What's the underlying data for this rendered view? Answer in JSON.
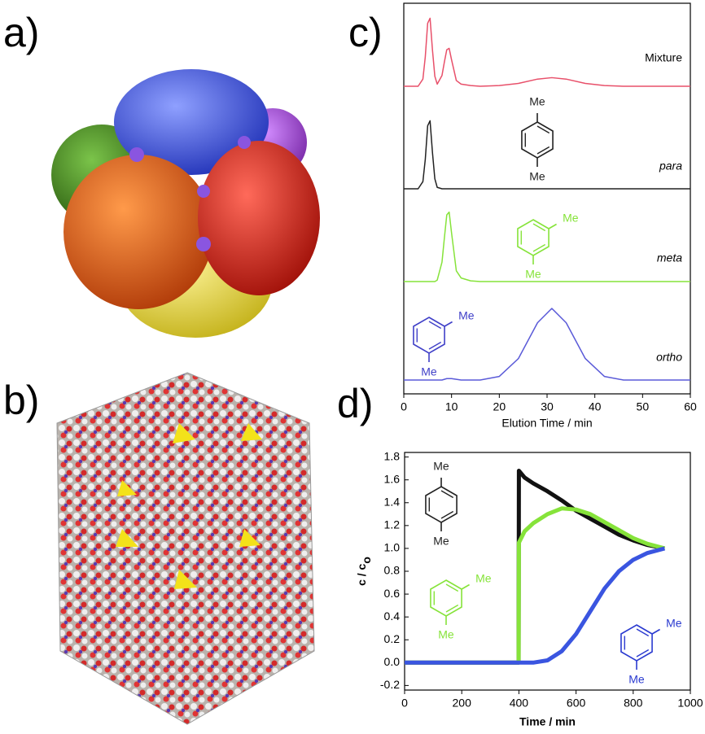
{
  "panel_labels": [
    "a)",
    "b)",
    "c)",
    "d)"
  ],
  "chart_data": [
    {
      "type": "line",
      "xlabel": "Elution Time / min",
      "xlim": [
        0,
        60
      ],
      "xticks": [
        0,
        10,
        20,
        30,
        40,
        50,
        60
      ],
      "x": [
        0,
        2,
        3,
        4,
        4.5,
        5,
        5.5,
        6,
        6.5,
        7,
        8,
        8.5,
        9,
        9.5,
        10,
        11,
        12,
        14,
        16,
        20,
        24,
        28,
        31,
        34,
        38,
        42,
        46,
        50,
        55,
        60
      ],
      "series": [
        {
          "name": "Mixture",
          "color": "#e8506a",
          "values": [
            0,
            0,
            0,
            0.1,
            0.41,
            0.88,
            0.95,
            0.51,
            0.14,
            0.03,
            0.15,
            0.34,
            0.51,
            0.53,
            0.37,
            0.08,
            0.03,
            0.01,
            0,
            0.01,
            0.04,
            0.1,
            0.12,
            0.1,
            0.04,
            0.01,
            0,
            0,
            0,
            0
          ]
        },
        {
          "name": "para",
          "color": "#222222",
          "values": [
            0,
            0,
            0,
            0.1,
            0.41,
            0.88,
            0.95,
            0.51,
            0.14,
            0.02,
            0,
            0,
            0,
            0,
            0,
            0,
            0,
            0,
            0,
            0,
            0,
            0,
            0,
            0,
            0,
            0,
            0,
            0,
            0,
            0
          ]
        },
        {
          "name": "meta",
          "color": "#86e33a",
          "values": [
            0,
            0,
            0,
            0,
            0,
            0,
            0,
            0,
            0,
            0.02,
            0.27,
            0.61,
            0.93,
            0.97,
            0.68,
            0.15,
            0.05,
            0.01,
            0,
            0,
            0,
            0,
            0,
            0,
            0,
            0,
            0,
            0,
            0,
            0
          ]
        },
        {
          "name": "ortho",
          "color": "#5a5ad8",
          "values": [
            0,
            0,
            0,
            0,
            0,
            0,
            0,
            0,
            0,
            0,
            0,
            0.01,
            0.02,
            0.02,
            0.02,
            0.01,
            0,
            0,
            0,
            0.05,
            0.3,
            0.8,
            1.0,
            0.8,
            0.3,
            0.05,
            0,
            0,
            0,
            0
          ]
        }
      ],
      "annotations": [
        "Me",
        "Me",
        "Me",
        "Me",
        "Me",
        "Me"
      ]
    },
    {
      "type": "line",
      "xlabel": "Time / min",
      "ylabel": "c / c",
      "ylabel_sub": "o",
      "xlim": [
        0,
        1000
      ],
      "xticks": [
        0,
        200,
        400,
        600,
        800,
        1000
      ],
      "ylim": [
        -0.24,
        1.84
      ],
      "yticks": [
        -0.2,
        {
          "value": 0,
          "label": "0.0"
        },
        0.2,
        0.4,
        0.6,
        0.8,
        {
          "value": 1,
          "label": "1.0"
        },
        1.2,
        1.4,
        1.6,
        1.8
      ],
      "x": [
        0,
        100,
        200,
        300,
        399,
        400,
        420,
        450,
        500,
        550,
        600,
        650,
        700,
        750,
        800,
        850,
        910
      ],
      "series": [
        {
          "color": "#111111",
          "values": [
            0,
            0,
            0,
            0,
            0,
            1.68,
            1.62,
            1.57,
            1.5,
            1.42,
            1.33,
            1.26,
            1.19,
            1.12,
            1.07,
            1.03,
            1.0
          ]
        },
        {
          "color": "#86e33a",
          "values": [
            0,
            0,
            0,
            0,
            0,
            1.05,
            1.15,
            1.22,
            1.3,
            1.35,
            1.34,
            1.3,
            1.23,
            1.16,
            1.09,
            1.04,
            1.0
          ]
        },
        {
          "color": "#3a55e0",
          "values": [
            0,
            0,
            0,
            0,
            0,
            0,
            0,
            0,
            0.02,
            0.1,
            0.25,
            0.45,
            0.65,
            0.8,
            0.9,
            0.96,
            1.0
          ]
        }
      ],
      "annotations": [
        "Me",
        "Me",
        "Me",
        "Me",
        "Me",
        "Me"
      ]
    }
  ]
}
